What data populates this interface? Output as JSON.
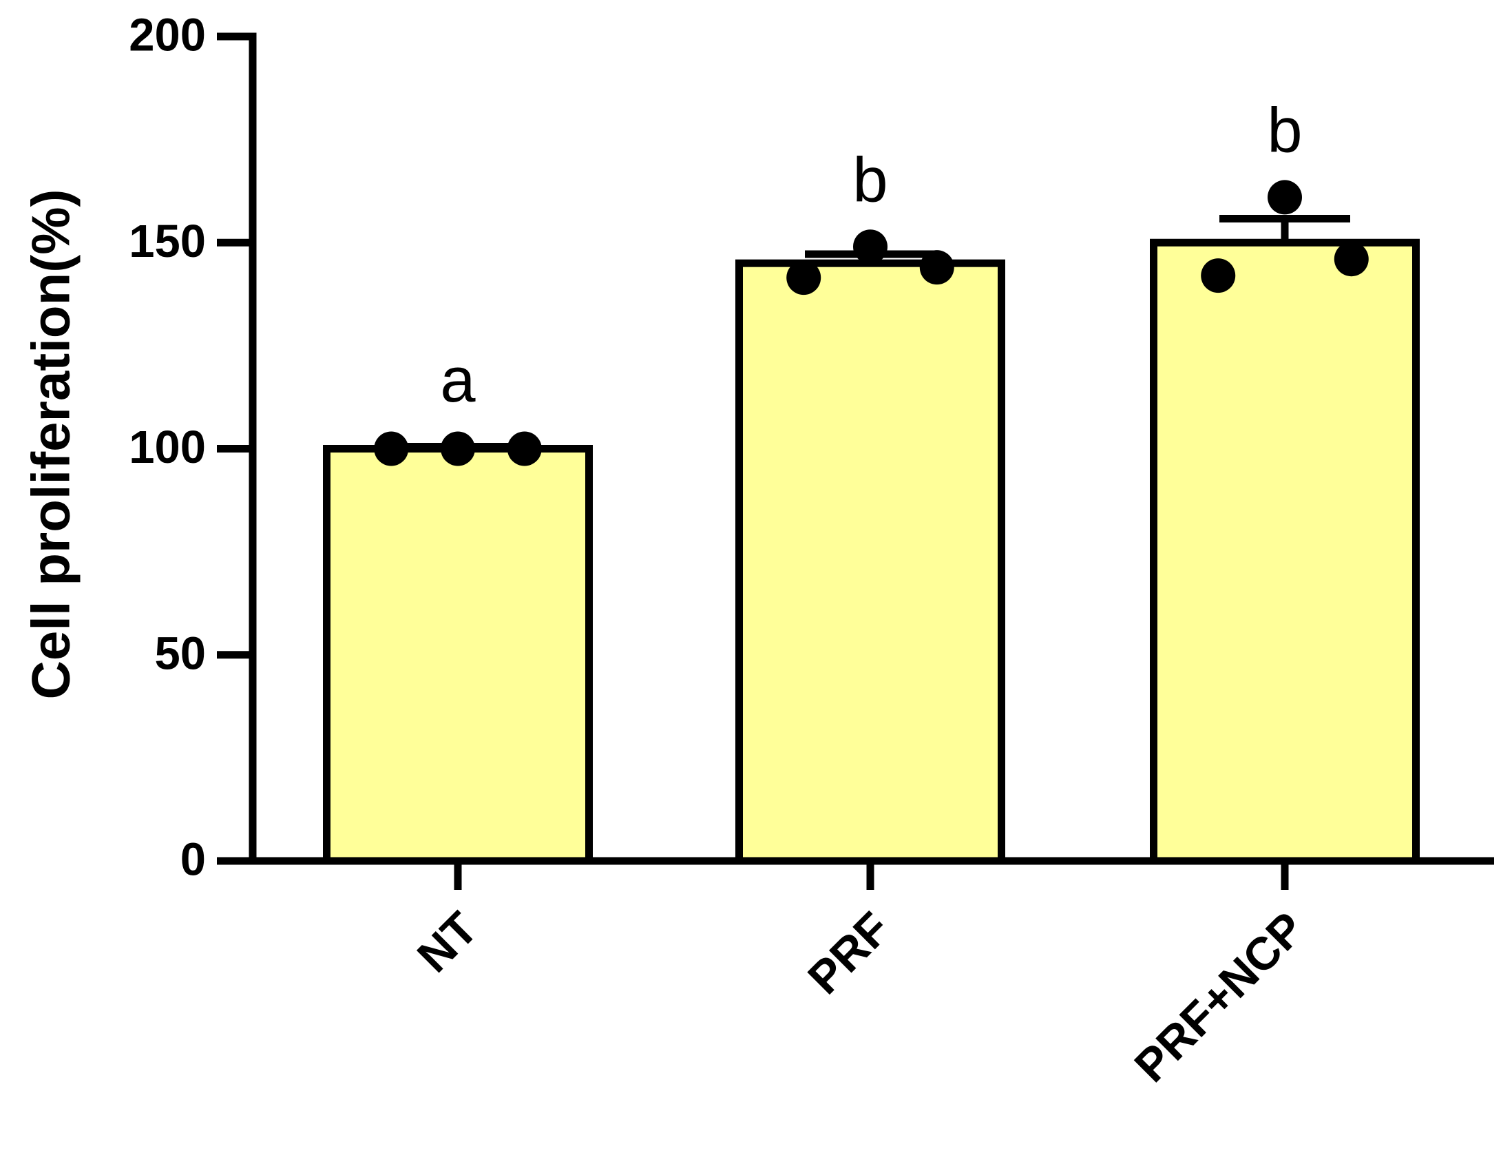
{
  "chart_data": {
    "type": "bar",
    "ylabel": "Cell proliferation(%)",
    "categories": [
      "NT",
      "PRF",
      "PRF+NCP"
    ],
    "values": [
      100,
      145,
      150
    ],
    "errors": [
      0.5,
      2.2,
      5.8
    ],
    "points": [
      [
        100,
        100,
        100
      ],
      [
        141.5,
        149,
        144
      ],
      [
        142,
        161,
        146
      ]
    ],
    "annotations": [
      "a",
      "b",
      "b"
    ],
    "color": "#ffff99",
    "ylim": [
      0,
      200
    ],
    "yticks": [
      0,
      50,
      100,
      150,
      200
    ]
  }
}
